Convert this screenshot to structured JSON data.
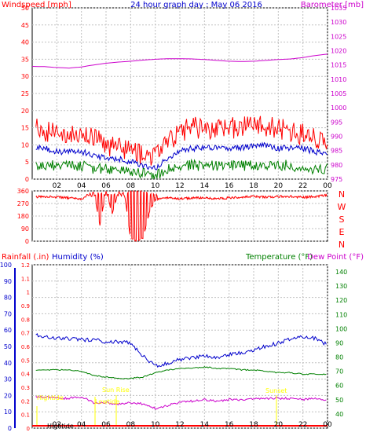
{
  "chart_data": [
    {
      "type": "line",
      "title": "24 hour graph day : May 06 2016",
      "left_axis_label": "Windspeed [mph]",
      "right_axis_label": "Barometer [mb]",
      "x_ticks": [
        "02",
        "04",
        "06",
        "08",
        "10",
        "12",
        "14",
        "16",
        "18",
        "20",
        "22",
        "00"
      ],
      "left_ticks": [
        "0",
        "5",
        "10",
        "15",
        "20",
        "25",
        "30",
        "35",
        "40",
        "45",
        "50"
      ],
      "right_ticks": [
        "975",
        "980",
        "985",
        "990",
        "995",
        "1000",
        "1005",
        "1010",
        "1015",
        "1020",
        "1025",
        "1030",
        "1035"
      ],
      "xlim": [
        0,
        24
      ],
      "ylim_left": [
        0,
        50
      ],
      "ylim_right": [
        975,
        1035
      ],
      "colors": {
        "windspeed": "#ff0000",
        "barometer": "#cc00cc",
        "average": "#0000cc",
        "gust": "#008000"
      },
      "series": [
        {
          "key": "barometer",
          "axis": "right",
          "x": [
            0,
            1,
            2,
            3,
            4,
            5,
            6,
            7,
            8,
            9,
            10,
            11,
            12,
            13,
            14,
            15,
            16,
            17,
            18,
            19,
            20,
            21,
            22,
            23,
            24
          ],
          "values": [
            1014.5,
            1014.4,
            1014.1,
            1013.9,
            1014.3,
            1015.0,
            1015.6,
            1016.0,
            1016.3,
            1016.7,
            1017.0,
            1017.2,
            1017.2,
            1017.1,
            1016.9,
            1016.6,
            1016.3,
            1016.2,
            1016.3,
            1016.6,
            1016.9,
            1017.1,
            1017.6,
            1018.3,
            1018.8
          ]
        },
        {
          "key": "windspeed",
          "axis": "left",
          "x": [
            0,
            1,
            2,
            3,
            4,
            5,
            6,
            7,
            8,
            9,
            10,
            11,
            12,
            13,
            14,
            15,
            16,
            17,
            18,
            19,
            20,
            21,
            22,
            23,
            24
          ],
          "values": [
            15,
            14,
            13,
            14,
            12,
            12,
            10,
            9,
            8,
            7,
            6,
            11,
            14,
            15,
            15,
            14,
            15,
            15,
            16,
            15,
            15,
            14,
            13,
            12,
            11
          ]
        },
        {
          "key": "average",
          "axis": "left",
          "x": [
            0,
            1,
            2,
            3,
            4,
            5,
            6,
            7,
            8,
            9,
            10,
            11,
            12,
            13,
            14,
            15,
            16,
            17,
            18,
            19,
            20,
            21,
            22,
            23,
            24
          ],
          "values": [
            9,
            9,
            8,
            8,
            8,
            7,
            6,
            6,
            5,
            4,
            3,
            6,
            8,
            9,
            9,
            9,
            9,
            9,
            10,
            10,
            9,
            9,
            9,
            8,
            7
          ]
        },
        {
          "key": "gust",
          "axis": "left",
          "x": [
            0,
            1,
            2,
            3,
            4,
            5,
            6,
            7,
            8,
            9,
            10,
            11,
            12,
            13,
            14,
            15,
            16,
            17,
            18,
            19,
            20,
            21,
            22,
            23,
            24
          ],
          "values": [
            4,
            4,
            4,
            4,
            4,
            3,
            3,
            3,
            2,
            2,
            1,
            3,
            4,
            4,
            4,
            4,
            4,
            4,
            4,
            4,
            4,
            4,
            3,
            3,
            3
          ]
        }
      ]
    },
    {
      "type": "line",
      "title": "",
      "left_ticks": [
        "0",
        "90",
        "180",
        "270",
        "360"
      ],
      "right_labels": [
        "N",
        "W",
        "S",
        "E",
        "N"
      ],
      "xlim": [
        0,
        24
      ],
      "ylim": [
        0,
        360
      ],
      "colors": {
        "direction": "#ff0000"
      },
      "series": [
        {
          "key": "direction",
          "x": [
            0,
            1,
            2,
            3,
            4,
            4.5,
            5,
            5.5,
            6,
            6.5,
            7,
            7.5,
            8,
            8.5,
            9,
            9.5,
            10,
            11,
            12,
            13,
            14,
            15,
            16,
            17,
            18,
            19,
            20,
            21,
            22,
            23,
            24
          ],
          "values": [
            315,
            320,
            315,
            310,
            300,
            330,
            350,
            120,
            350,
            200,
            350,
            340,
            10,
            5,
            15,
            200,
            300,
            310,
            305,
            310,
            310,
            305,
            310,
            315,
            320,
            315,
            320,
            320,
            315,
            320,
            330
          ]
        }
      ]
    },
    {
      "type": "line",
      "title": "",
      "labels": {
        "rainfall": "Rainfall (.in)",
        "humidity": "Humidity (%)",
        "temperature": "Temperature (°F)",
        "dewpoint": "Dew Point (°F)"
      },
      "x_ticks": [
        "02",
        "04",
        "06",
        "08",
        "10",
        "12",
        "14",
        "16",
        "18",
        "20",
        "22",
        "00"
      ],
      "rain_ticks": [
        "0",
        "0.1",
        "0.2",
        "0.3",
        "0.4",
        "0.5",
        "0.6",
        "0.7",
        "0.8",
        "0.9",
        "1",
        "1.1",
        "1.2"
      ],
      "humidity_ticks": [
        "0",
        "10",
        "20",
        "30",
        "40",
        "50",
        "60",
        "70",
        "80",
        "90",
        "100"
      ],
      "temperature_ticks": [
        "40",
        "50",
        "60",
        "70",
        "80",
        "90",
        "100",
        "110",
        "120",
        "130",
        "140"
      ],
      "ylim_humidity": [
        0,
        100
      ],
      "ylim_temperature": [
        30,
        145
      ],
      "annotations": [
        "Hightide",
        "Lowtide",
        "Sun Rise",
        "Sunset",
        "Hightide"
      ],
      "colors": {
        "rainfall": "#ff0000",
        "humidity": "#0000cc",
        "temperature": "#008000",
        "dewpoint": "#cc00cc",
        "annotation": "#ffff00"
      },
      "series": [
        {
          "key": "humidity",
          "axis": "humidity",
          "x": [
            0,
            1,
            2,
            3,
            4,
            5,
            6,
            7,
            8,
            9,
            10,
            11,
            12,
            13,
            14,
            15,
            16,
            17,
            18,
            19,
            20,
            21,
            22,
            23,
            24
          ],
          "values": [
            57,
            56,
            55,
            55,
            54,
            54,
            53,
            53,
            52,
            44,
            38,
            40,
            42,
            43,
            44,
            43,
            45,
            46,
            48,
            50,
            52,
            55,
            56,
            55,
            51
          ]
        },
        {
          "key": "temperature",
          "axis": "temperature",
          "x": [
            0,
            1,
            2,
            3,
            4,
            5,
            6,
            7,
            8,
            9,
            10,
            11,
            12,
            13,
            14,
            15,
            16,
            17,
            18,
            19,
            20,
            21,
            22,
            23,
            24
          ],
          "values": [
            71,
            71,
            71,
            71,
            70,
            67,
            66,
            65,
            65,
            66,
            69,
            71,
            72,
            72,
            73,
            72,
            72,
            71,
            71,
            70,
            69,
            69,
            68,
            68,
            68
          ]
        },
        {
          "key": "dewpoint",
          "axis": "temperature",
          "x": [
            0,
            1,
            2,
            3,
            4,
            5,
            6,
            7,
            8,
            9,
            10,
            11,
            12,
            13,
            14,
            15,
            16,
            17,
            18,
            19,
            20,
            21,
            22,
            23,
            24
          ],
          "values": [
            52,
            52,
            51,
            51,
            52,
            48,
            48,
            47,
            48,
            47,
            44,
            46,
            48,
            49,
            50,
            49,
            50,
            50,
            51,
            51,
            51,
            51,
            50,
            51,
            50
          ]
        },
        {
          "key": "rainfall",
          "axis": "rain",
          "x": [
            0,
            24
          ],
          "values": [
            0,
            0
          ]
        }
      ]
    }
  ]
}
